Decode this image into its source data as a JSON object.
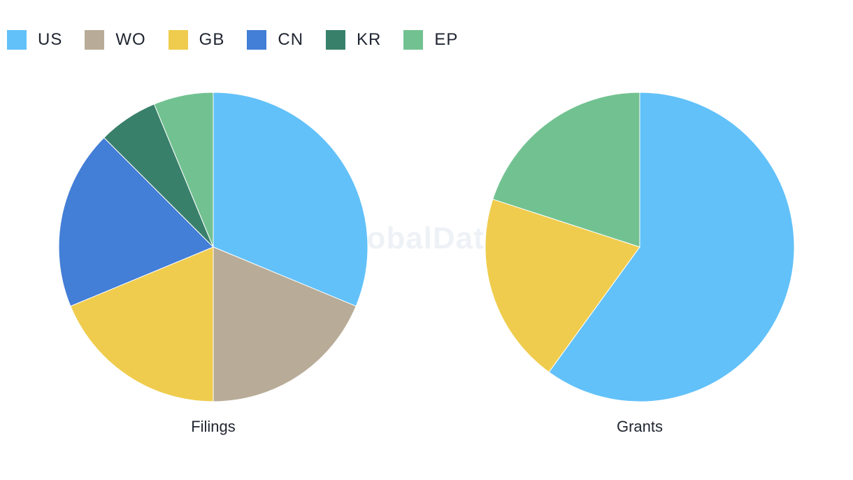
{
  "watermark": "GlobalData",
  "legend": [
    {
      "label": "US",
      "color": "#62c1f9"
    },
    {
      "label": "WO",
      "color": "#b8ac98"
    },
    {
      "label": "GB",
      "color": "#efcc4d"
    },
    {
      "label": "CN",
      "color": "#437ed7"
    },
    {
      "label": "KR",
      "color": "#39806b"
    },
    {
      "label": "EP",
      "color": "#72c291"
    }
  ],
  "chart_data": [
    {
      "type": "pie",
      "title": "Filings",
      "slices": [
        {
          "label": "US",
          "value": 5,
          "color": "#62c1f9"
        },
        {
          "label": "WO",
          "value": 3,
          "color": "#b8ac98"
        },
        {
          "label": "GB",
          "value": 3,
          "color": "#efcc4d"
        },
        {
          "label": "CN",
          "value": 3,
          "color": "#437ed7"
        },
        {
          "label": "KR",
          "value": 1,
          "color": "#39806b"
        },
        {
          "label": "EP",
          "value": 1,
          "color": "#72c291"
        }
      ]
    },
    {
      "type": "pie",
      "title": "Grants",
      "slices": [
        {
          "label": "US",
          "value": 3,
          "color": "#62c1f9"
        },
        {
          "label": "GB",
          "value": 1,
          "color": "#efcc4d"
        },
        {
          "label": "EP",
          "value": 1,
          "color": "#72c291"
        }
      ]
    }
  ]
}
